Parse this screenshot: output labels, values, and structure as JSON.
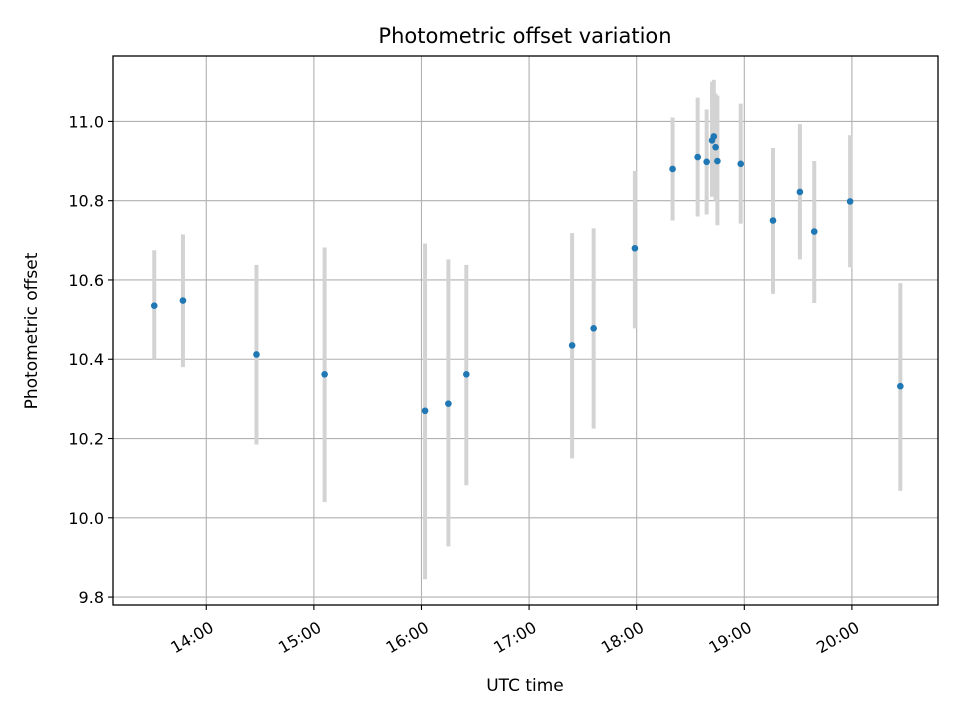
{
  "chart_data": {
    "type": "scatter",
    "title": "Photometric offset variation",
    "xlabel": "UTC time",
    "ylabel": "Photometric offset",
    "grid": true,
    "xlim": [
      "13:08",
      "20:48"
    ],
    "ylim": [
      9.78,
      11.165
    ],
    "x_ticks": [
      "14:00",
      "15:00",
      "16:00",
      "17:00",
      "18:00",
      "19:00",
      "20:00"
    ],
    "y_ticks": [
      "9.8",
      "10.0",
      "10.2",
      "10.4",
      "10.6",
      "10.8",
      "11.0"
    ],
    "series": [
      {
        "marker_color": "#1f77b4",
        "errorbar_color": "#d3d3d3",
        "points": [
          {
            "t": "13:31",
            "y": 10.535,
            "lo": 10.4,
            "hi": 10.675
          },
          {
            "t": "13:47",
            "y": 10.548,
            "lo": 10.38,
            "hi": 10.715
          },
          {
            "t": "14:28",
            "y": 10.412,
            "lo": 10.185,
            "hi": 10.638
          },
          {
            "t": "15:06",
            "y": 10.362,
            "lo": 10.04,
            "hi": 10.682
          },
          {
            "t": "16:02",
            "y": 10.27,
            "lo": 9.845,
            "hi": 10.692
          },
          {
            "t": "16:15",
            "y": 10.288,
            "lo": 9.928,
            "hi": 10.652
          },
          {
            "t": "16:25",
            "y": 10.362,
            "lo": 10.082,
            "hi": 10.638
          },
          {
            "t": "17:24",
            "y": 10.435,
            "lo": 10.15,
            "hi": 10.718
          },
          {
            "t": "17:36",
            "y": 10.478,
            "lo": 10.225,
            "hi": 10.73
          },
          {
            "t": "17:59",
            "y": 10.68,
            "lo": 10.478,
            "hi": 10.875
          },
          {
            "t": "18:20",
            "y": 10.88,
            "lo": 10.75,
            "hi": 11.01
          },
          {
            "t": "18:34",
            "y": 10.91,
            "lo": 10.76,
            "hi": 11.06
          },
          {
            "t": "18:39",
            "y": 10.898,
            "lo": 10.765,
            "hi": 11.03
          },
          {
            "t": "18:42",
            "y": 10.952,
            "lo": 10.81,
            "hi": 11.1
          },
          {
            "t": "18:43",
            "y": 10.962,
            "lo": 10.82,
            "hi": 11.105
          },
          {
            "t": "18:44",
            "y": 10.935,
            "lo": 10.8,
            "hi": 11.07
          },
          {
            "t": "18:45",
            "y": 10.9,
            "lo": 10.738,
            "hi": 11.065
          },
          {
            "t": "18:58",
            "y": 10.893,
            "lo": 10.742,
            "hi": 11.045
          },
          {
            "t": "19:16",
            "y": 10.75,
            "lo": 10.565,
            "hi": 10.933
          },
          {
            "t": "19:31",
            "y": 10.822,
            "lo": 10.652,
            "hi": 10.993
          },
          {
            "t": "19:39",
            "y": 10.722,
            "lo": 10.542,
            "hi": 10.9
          },
          {
            "t": "19:59",
            "y": 10.798,
            "lo": 10.632,
            "hi": 10.965
          },
          {
            "t": "20:27",
            "y": 10.332,
            "lo": 10.068,
            "hi": 10.592
          }
        ]
      }
    ]
  }
}
